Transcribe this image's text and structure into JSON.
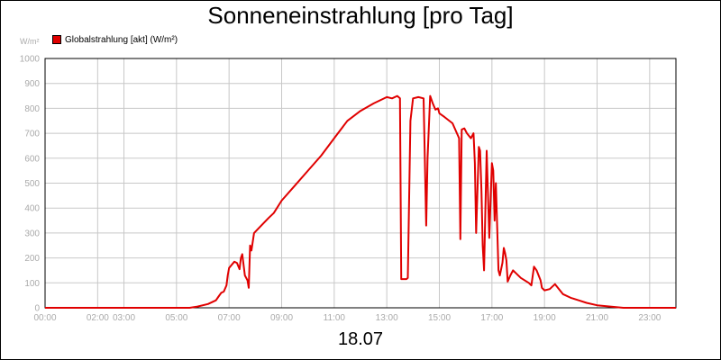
{
  "chart_data": {
    "type": "line",
    "title": "Sonneneinstrahlung [pro Tag]",
    "ylabel": "W/m²",
    "xlabel": "18.07",
    "legend": "top-left",
    "grid": true,
    "ylim": [
      0,
      1000
    ],
    "xlim": [
      0,
      24
    ],
    "y_ticks": [
      "0",
      "100",
      "200",
      "300",
      "400",
      "500",
      "600",
      "700",
      "800",
      "900",
      "1000"
    ],
    "x_ticks": [
      {
        "t": 0,
        "label": "00:00"
      },
      {
        "t": 2,
        "label": "02:00"
      },
      {
        "t": 3,
        "label": "03:00"
      },
      {
        "t": 5,
        "label": "05:00"
      },
      {
        "t": 7,
        "label": "07:00"
      },
      {
        "t": 9,
        "label": "09:00"
      },
      {
        "t": 11,
        "label": "11:00"
      },
      {
        "t": 13,
        "label": "13:00"
      },
      {
        "t": 15,
        "label": "15:00"
      },
      {
        "t": 17,
        "label": "17:00"
      },
      {
        "t": 19,
        "label": "19:00"
      },
      {
        "t": 21,
        "label": "21:00"
      },
      {
        "t": 23,
        "label": "23:00"
      }
    ],
    "x_unit": "hour of day",
    "series": [
      {
        "name": "Globalstrahlung [akt] (W/m²)",
        "color": "#e00000",
        "x": [
          0,
          5.5,
          5.8,
          6.2,
          6.5,
          6.6,
          6.7,
          6.8,
          6.9,
          6.95,
          7.0,
          7.2,
          7.3,
          7.4,
          7.45,
          7.5,
          7.6,
          7.7,
          7.75,
          7.8,
          7.85,
          7.95,
          8.5,
          8.7,
          9.0,
          9.5,
          10.0,
          10.5,
          11.0,
          11.5,
          12.0,
          12.5,
          13.0,
          13.2,
          13.4,
          13.5,
          13.55,
          13.75,
          13.8,
          13.9,
          14.0,
          14.2,
          14.4,
          14.5,
          14.55,
          14.65,
          14.75,
          14.85,
          14.95,
          15.0,
          15.2,
          15.5,
          15.75,
          15.8,
          15.85,
          15.95,
          16.05,
          16.2,
          16.3,
          16.35,
          16.4,
          16.5,
          16.55,
          16.6,
          16.65,
          16.7,
          16.8,
          16.9,
          17.0,
          17.05,
          17.1,
          17.15,
          17.25,
          17.3,
          17.4,
          17.45,
          17.5,
          17.55,
          17.6,
          17.7,
          17.8,
          17.9,
          18.1,
          18.4,
          18.5,
          18.6,
          18.7,
          18.85,
          18.9,
          19.0,
          19.2,
          19.4,
          19.7,
          20.0,
          20.3,
          20.6,
          21.0,
          21.5,
          22.0,
          24.0
        ],
        "y": [
          0,
          0,
          5,
          15,
          30,
          45,
          60,
          65,
          90,
          130,
          160,
          185,
          180,
          155,
          200,
          215,
          130,
          110,
          80,
          250,
          230,
          300,
          360,
          380,
          430,
          490,
          550,
          610,
          680,
          750,
          790,
          820,
          845,
          840,
          850,
          840,
          115,
          115,
          120,
          750,
          840,
          845,
          840,
          330,
          600,
          850,
          820,
          795,
          800,
          780,
          765,
          740,
          680,
          275,
          715,
          720,
          700,
          680,
          700,
          580,
          300,
          645,
          630,
          470,
          250,
          150,
          630,
          280,
          580,
          550,
          350,
          500,
          150,
          130,
          180,
          240,
          220,
          190,
          105,
          130,
          150,
          140,
          120,
          100,
          90,
          165,
          150,
          110,
          80,
          70,
          75,
          95,
          55,
          40,
          30,
          20,
          10,
          5,
          0,
          0
        ]
      }
    ]
  }
}
